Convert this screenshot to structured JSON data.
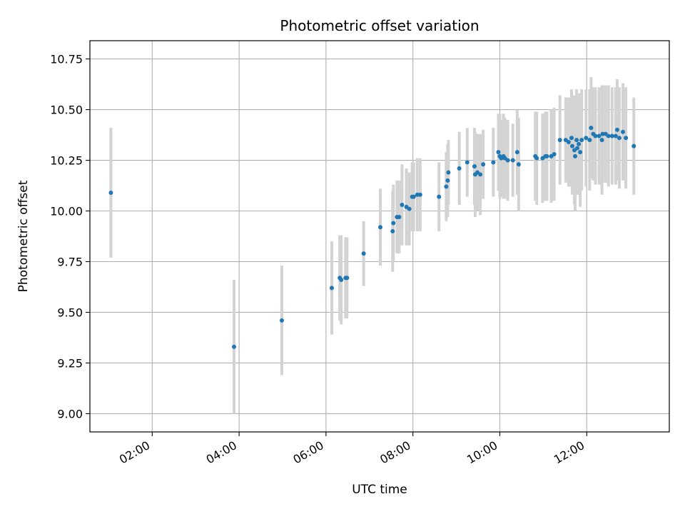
{
  "chart_data": {
    "type": "scatter",
    "title": "Photometric offset variation",
    "xlabel": "UTC time",
    "ylabel": "Photometric offset",
    "x_ticks": [
      "02:00",
      "04:00",
      "06:00",
      "08:00",
      "10:00",
      "12:00"
    ],
    "y_ticks": [
      "9.00",
      "9.25",
      "9.50",
      "9.75",
      "10.00",
      "10.25",
      "10.50",
      "10.75"
    ],
    "xlim": [
      "00:34",
      "13:54"
    ],
    "ylim": [
      8.91,
      10.84
    ],
    "grid": true,
    "colors": {
      "point": "#1f77b4",
      "errorbar": "#d3d3d3",
      "grid": "#b0b0b0"
    },
    "series": [
      {
        "x": [
          "01:03",
          "03:53",
          "04:59",
          "06:08",
          "06:19",
          "06:21",
          "06:27",
          "06:29",
          "06:52",
          "07:15",
          "07:32",
          "07:33",
          "07:38",
          "07:41",
          "07:45",
          "07:51",
          "07:55",
          "07:59",
          "08:01",
          "08:06",
          "08:10",
          "08:36",
          "08:46",
          "08:48",
          "08:49",
          "09:04",
          "09:15",
          "09:25",
          "09:26",
          "09:29",
          "09:33",
          "09:37",
          "09:51",
          "09:58",
          "10:00",
          "10:02",
          "10:05",
          "10:07",
          "10:11",
          "10:18",
          "10:24",
          "10:26",
          "10:49",
          "10:51",
          "10:59",
          "11:03",
          "11:05",
          "11:11",
          "11:15",
          "11:23",
          "11:31",
          "11:35",
          "11:39",
          "11:40",
          "11:43",
          "11:44",
          "11:46",
          "11:47",
          "11:49",
          "11:51",
          "11:53",
          "11:59",
          "12:04",
          "12:06",
          "12:09",
          "12:12",
          "12:17",
          "12:21",
          "12:22",
          "12:26",
          "12:30",
          "12:35",
          "12:40",
          "12:42",
          "12:45",
          "12:50",
          "12:54",
          "13:05"
        ],
        "y": [
          10.09,
          9.33,
          9.46,
          9.62,
          9.67,
          9.66,
          9.67,
          9.67,
          9.79,
          9.92,
          9.9,
          9.94,
          9.97,
          9.97,
          10.03,
          10.02,
          10.01,
          10.07,
          10.07,
          10.08,
          10.08,
          10.07,
          10.12,
          10.15,
          10.19,
          10.21,
          10.24,
          10.22,
          10.18,
          10.19,
          10.18,
          10.23,
          10.24,
          10.29,
          10.27,
          10.26,
          10.27,
          10.26,
          10.25,
          10.25,
          10.29,
          10.23,
          10.27,
          10.26,
          10.26,
          10.27,
          10.27,
          10.27,
          10.28,
          10.35,
          10.35,
          10.34,
          10.36,
          10.32,
          10.3,
          10.27,
          10.35,
          10.31,
          10.33,
          10.29,
          10.35,
          10.36,
          10.35,
          10.41,
          10.38,
          10.37,
          10.37,
          10.35,
          10.38,
          10.38,
          10.37,
          10.37,
          10.37,
          10.4,
          10.36,
          10.39,
          10.36,
          10.32
        ],
        "y_err": [
          0.32,
          0.33,
          0.27,
          0.23,
          0.21,
          0.22,
          0.2,
          0.2,
          0.16,
          0.19,
          0.2,
          0.19,
          0.18,
          0.18,
          0.2,
          0.19,
          0.18,
          0.17,
          0.17,
          0.18,
          0.18,
          0.17,
          0.17,
          0.18,
          0.16,
          0.18,
          0.17,
          0.19,
          0.21,
          0.19,
          0.2,
          0.17,
          0.17,
          0.19,
          0.21,
          0.19,
          0.21,
          0.2,
          0.2,
          0.18,
          0.21,
          0.23,
          0.22,
          0.23,
          0.22,
          0.22,
          0.22,
          0.23,
          0.23,
          0.22,
          0.21,
          0.22,
          0.24,
          0.24,
          0.27,
          0.27,
          0.25,
          0.23,
          0.25,
          0.27,
          0.25,
          0.24,
          0.25,
          0.25,
          0.23,
          0.24,
          0.24,
          0.27,
          0.24,
          0.24,
          0.25,
          0.24,
          0.24,
          0.25,
          0.25,
          0.24,
          0.25,
          0.24
        ]
      }
    ]
  }
}
